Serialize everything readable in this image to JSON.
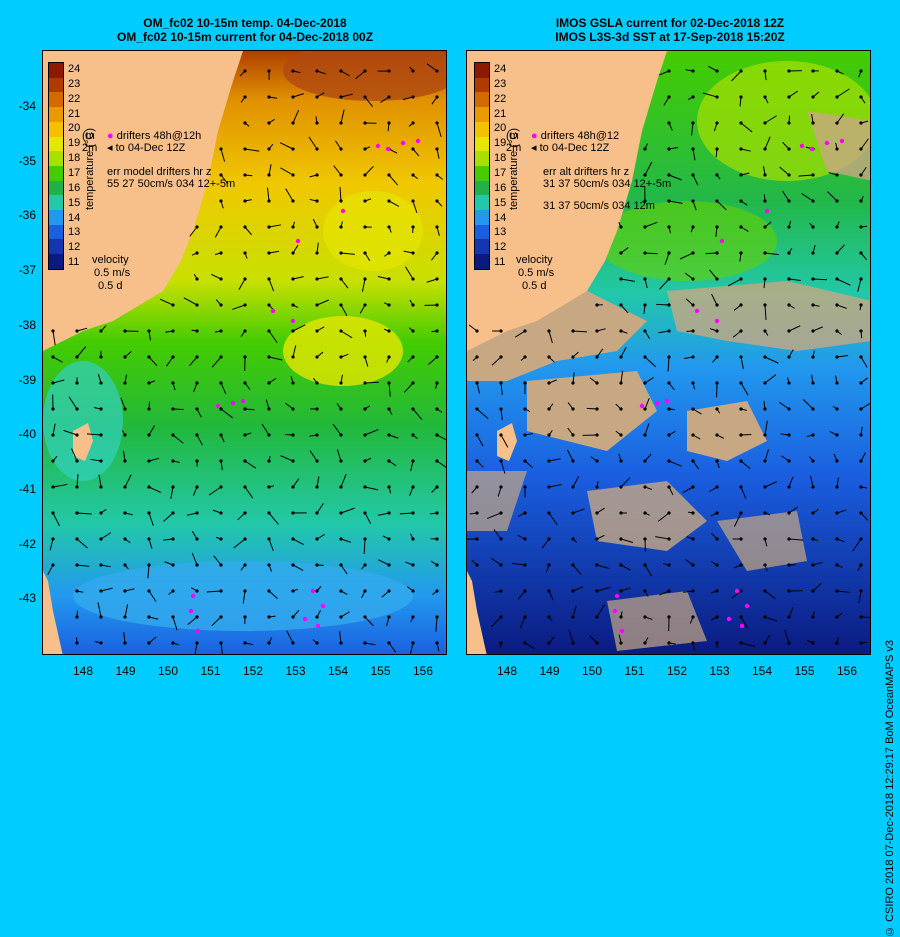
{
  "left": {
    "title_line1": "OM_fc02 10-15m temp. 04-Dec-2018",
    "title_line2": "OM_fc02 10-15m current for 04-Dec-2018 00Z",
    "legend_drifters": "drifters 48h@12h",
    "legend_to": "to 04-Dec 12Z",
    "legend_err1": "err model drifters hr z",
    "legend_err2": "55 27 50cm/s 034 12+-5m",
    "legend_prefix1": "(m",
    "legend_prefix2": "2m"
  },
  "right": {
    "title_line1": "IMOS GSLA current for 02-Dec-2018 12Z",
    "title_line2": "IMOS L3S-3d SST at 17-Sep-2018 15:20Z",
    "legend_drifters": "drifters 48h@12",
    "legend_to": "to 04-Dec 12Z",
    "legend_err1": "err alt drifters hr z",
    "legend_err2": "31 37 50cm/s 034 12+-5m",
    "legend_err3": "31 37 50cm/s 034 12m",
    "legend_prefix1": "(m",
    "legend_prefix2": "2m"
  },
  "colorbar": {
    "label": "temperature (°C)",
    "ticks": [
      "24",
      "23",
      "22",
      "21",
      "20",
      "19",
      "18",
      "17",
      "16",
      "15",
      "14",
      "13",
      "12",
      "11"
    ],
    "colors": [
      "#8b1a00",
      "#b03a00",
      "#d26a00",
      "#e89a00",
      "#f4c000",
      "#e6e600",
      "#a8e000",
      "#44cc00",
      "#22b04a",
      "#22c8a8",
      "#2299ee",
      "#1a5fe0",
      "#1436b0",
      "#0a1a80"
    ]
  },
  "velocity": {
    "label": "velocity",
    "speed": "0.5 m/s",
    "duration": "0.5 d"
  },
  "axes": {
    "y_ticks": [
      "-34",
      "-35",
      "-36",
      "-37",
      "-38",
      "-39",
      "-40",
      "-41",
      "-42",
      "-43"
    ],
    "x_ticks": [
      "148",
      "149",
      "150",
      "151",
      "152",
      "153",
      "154",
      "155",
      "156"
    ]
  },
  "credit": "© CSIRO 2018  07-Dec-2018 12:29:17 BoM OceanMAPS v3",
  "colors": {
    "background": "#00ccff",
    "land": "#f7c08a",
    "drifter": "#ff00ff",
    "right_land": "#c8a882"
  }
}
